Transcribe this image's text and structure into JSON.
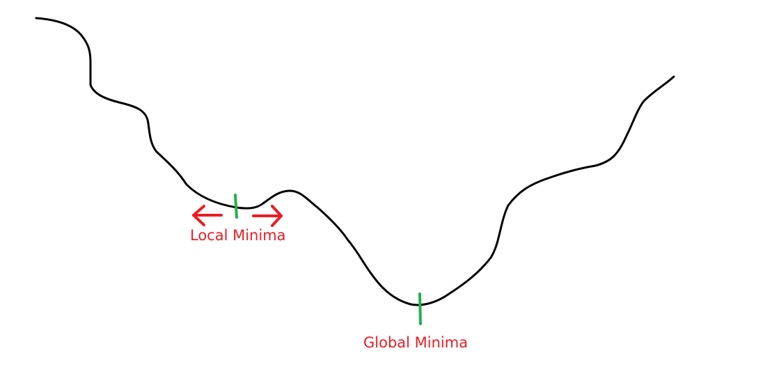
{
  "labels": {
    "local_minima": "Local Minima",
    "global_minima": "Global Minima"
  },
  "colors": {
    "curve": "#000000",
    "marker": "#22b14c",
    "label": "#ed1c24",
    "arrow": "#ed1c24",
    "background": "#ffffff"
  }
}
